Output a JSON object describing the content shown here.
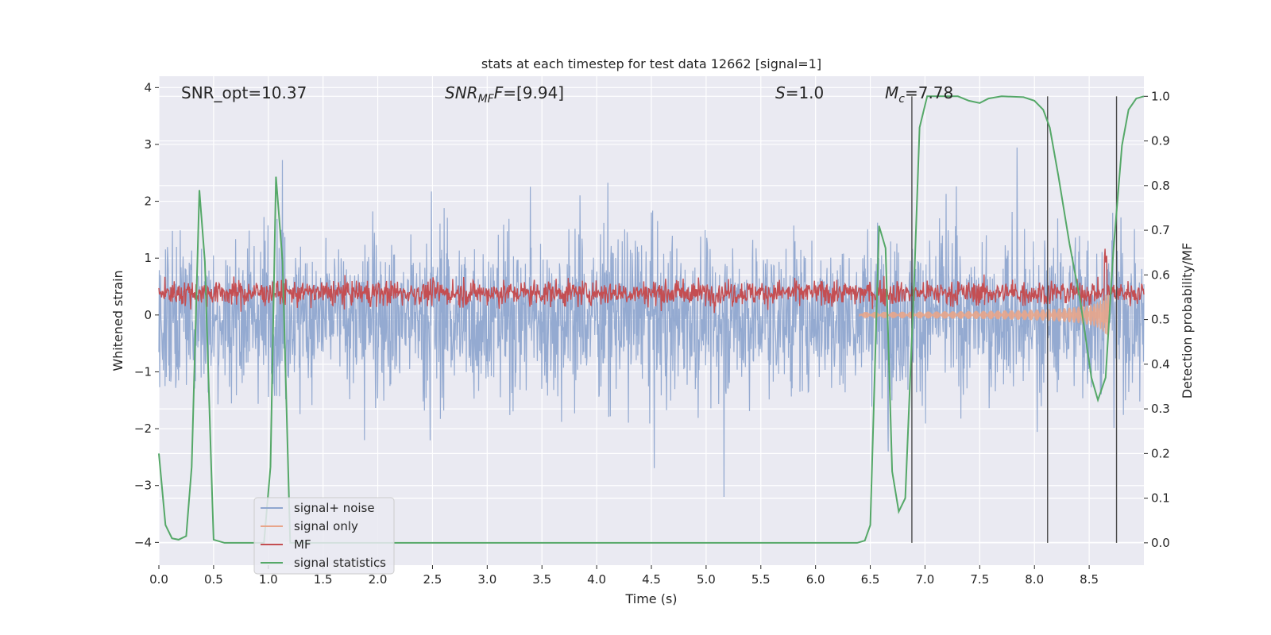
{
  "chart_data": {
    "type": "line",
    "title": "stats at each timestep for test data 12662 [signal=1]",
    "xlabel": "Time (s)",
    "ylabel": "Whitened strain",
    "y2label": "Detection probability/MF",
    "xlim": [
      0.0,
      9.0
    ],
    "ylim": [
      -4.4,
      4.2
    ],
    "y2lim": [
      -0.05,
      1.045
    ],
    "xticks": [
      "0.0",
      "0.5",
      "1.0",
      "1.5",
      "2.0",
      "2.5",
      "3.0",
      "3.5",
      "4.0",
      "4.5",
      "5.0",
      "5.5",
      "6.0",
      "6.5",
      "7.0",
      "7.5",
      "8.0",
      "8.5"
    ],
    "yticks": [
      "−4",
      "−3",
      "−2",
      "−1",
      "0",
      "1",
      "2",
      "3",
      "4"
    ],
    "y2ticks": [
      "0.0",
      "0.1",
      "0.2",
      "0.3",
      "0.4",
      "0.5",
      "0.6",
      "0.7",
      "0.8",
      "0.9",
      "1.0"
    ],
    "grid": true,
    "legend_position": "lower-left",
    "annotations": {
      "snr_opt": "SNR_opt=10.37",
      "snr_mf_label": "SNR",
      "snr_mf_sub": "MF",
      "snr_mf_value": "=[9.94]",
      "s_label": "S",
      "s_value": "=1.0",
      "mc_label": "M",
      "mc_sub": "c",
      "mc_value": "=7.78"
    },
    "vertical_lines_x": [
      6.88,
      8.12,
      8.75
    ],
    "series": [
      {
        "name": "signal+ noise",
        "color": "#8FA6CF",
        "kind": "noise_band",
        "typical_amplitude": 1.8,
        "peak_max": 3.3,
        "peak_min": -3.8
      },
      {
        "name": "signal only",
        "color": "#E8A58A",
        "kind": "chirp",
        "start_x": 6.4,
        "end_x": 8.68,
        "max_amplitude": 1.3
      },
      {
        "name": "MF",
        "color": "#C44E52",
        "kind": "noise_trace",
        "mean_y2": 0.56,
        "spread_y2": 0.02
      },
      {
        "name": "signal statistics",
        "color": "#55A868",
        "kind": "line_y2",
        "points": [
          [
            0.0,
            0.2
          ],
          [
            0.06,
            0.04
          ],
          [
            0.12,
            0.01
          ],
          [
            0.18,
            0.007
          ],
          [
            0.25,
            0.015
          ],
          [
            0.3,
            0.17
          ],
          [
            0.37,
            0.79
          ],
          [
            0.42,
            0.63
          ],
          [
            0.48,
            0.16
          ],
          [
            0.5,
            0.007
          ],
          [
            0.6,
            0.0
          ],
          [
            0.96,
            0.0
          ],
          [
            1.02,
            0.17
          ],
          [
            1.07,
            0.82
          ],
          [
            1.13,
            0.63
          ],
          [
            1.2,
            0.0
          ],
          [
            6.38,
            0.0
          ],
          [
            6.45,
            0.005
          ],
          [
            6.5,
            0.04
          ],
          [
            6.58,
            0.71
          ],
          [
            6.64,
            0.66
          ],
          [
            6.7,
            0.16
          ],
          [
            6.76,
            0.07
          ],
          [
            6.82,
            0.1
          ],
          [
            6.9,
            0.58
          ],
          [
            6.95,
            0.93
          ],
          [
            7.02,
            1.0
          ],
          [
            7.3,
            1.0
          ],
          [
            7.4,
            0.99
          ],
          [
            7.5,
            0.985
          ],
          [
            7.58,
            0.995
          ],
          [
            7.7,
            1.0
          ],
          [
            7.9,
            0.998
          ],
          [
            8.0,
            0.99
          ],
          [
            8.08,
            0.97
          ],
          [
            8.14,
            0.93
          ],
          [
            8.22,
            0.82
          ],
          [
            8.32,
            0.67
          ],
          [
            8.42,
            0.54
          ],
          [
            8.52,
            0.37
          ],
          [
            8.58,
            0.32
          ],
          [
            8.65,
            0.37
          ],
          [
            8.72,
            0.65
          ],
          [
            8.8,
            0.89
          ],
          [
            8.86,
            0.97
          ],
          [
            8.93,
            0.995
          ],
          [
            9.0,
            1.0
          ]
        ]
      }
    ]
  }
}
